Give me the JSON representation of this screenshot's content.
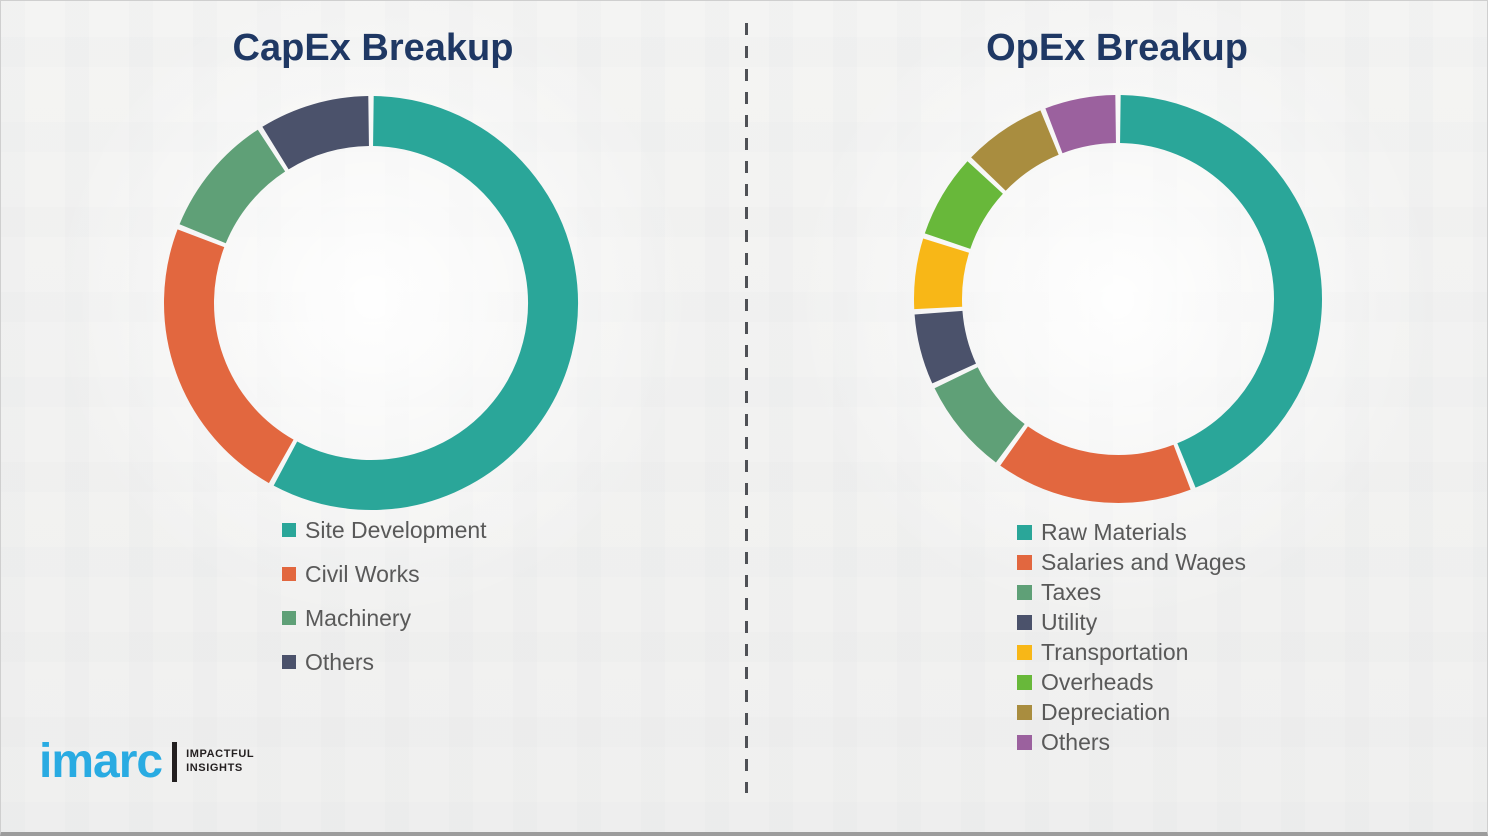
{
  "left_panel": {
    "title": "CapEx Breakup"
  },
  "right_panel": {
    "title": "OpEx Breakup"
  },
  "chart_data": [
    {
      "type": "pie",
      "subtype": "donut",
      "title": "CapEx Breakup",
      "labels": [
        "Site Development",
        "Civil Works",
        "Machinery",
        "Others"
      ],
      "values": [
        58,
        23,
        10,
        9
      ],
      "unit": "percent",
      "colors": [
        "#2aa699",
        "#e2673f",
        "#5fa077",
        "#4b526b"
      ],
      "start_angle_deg": 0,
      "direction": "clockwise",
      "legend_position": "below-left"
    },
    {
      "type": "pie",
      "subtype": "donut",
      "title": "OpEx Breakup",
      "labels": [
        "Raw Materials",
        "Salaries and Wages",
        "Taxes",
        "Utility",
        "Transportation",
        "Overheads",
        "Depreciation",
        "Others"
      ],
      "values": [
        44,
        16,
        8,
        6,
        6,
        7,
        7,
        6
      ],
      "unit": "percent",
      "colors": [
        "#2aa699",
        "#e2673f",
        "#5fa077",
        "#4b526b",
        "#f8b717",
        "#68b83a",
        "#a98d3f",
        "#9b619e"
      ],
      "start_angle_deg": 0,
      "direction": "clockwise",
      "legend_position": "below-left"
    }
  ],
  "divider": {
    "style": "vertical-dashed"
  },
  "logo": {
    "brand": "imarc",
    "tagline_line1": "IMPACTFUL",
    "tagline_line2": "INSIGHTS",
    "brand_color": "#29abe2"
  },
  "theme": {
    "title_color": "#1f3864",
    "legend_text_color": "#595959",
    "background": "#f2f2f1"
  }
}
